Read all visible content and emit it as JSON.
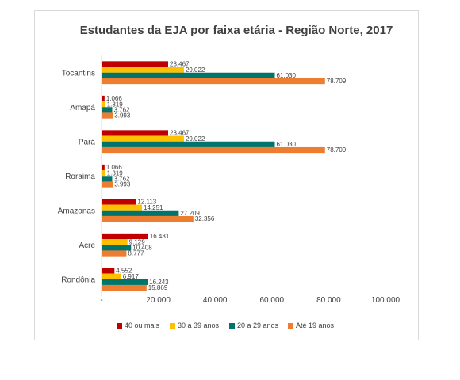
{
  "chart_data": {
    "type": "bar",
    "orientation": "horizontal",
    "title": "Estudantes da EJA por faixa etária - Região Norte, 2017",
    "xlabel": "",
    "ylabel": "",
    "categories": [
      "Tocantins",
      "Amapá",
      "Pará",
      "Roraima",
      "Amazonas",
      "Acre",
      "Rondônia"
    ],
    "series": [
      {
        "name": "40 ou mais",
        "color": "#c00000",
        "values": [
          23467,
          1066,
          23467,
          1066,
          12113,
          16431,
          4552
        ],
        "labels": [
          "23.467",
          "1.066",
          "23.467",
          "1.066",
          "12.113",
          "16.431",
          "4.552"
        ]
      },
      {
        "name": "30 a 39 anos",
        "color": "#ffc000",
        "values": [
          29022,
          1319,
          29022,
          1319,
          14251,
          9129,
          6917
        ],
        "labels": [
          "29.022",
          "1.319",
          "29.022",
          "1.319",
          "14.251",
          "9.129",
          "6.917"
        ]
      },
      {
        "name": "20 a 29 anos",
        "color": "#00746a",
        "values": [
          61030,
          3762,
          61030,
          3762,
          27209,
          10408,
          16243
        ],
        "labels": [
          "61.030",
          "3.762",
          "61.030",
          "3.762",
          "27.209",
          "10.408",
          "16.243"
        ]
      },
      {
        "name": "Até 19 anos",
        "color": "#ed7d31",
        "values": [
          78709,
          3993,
          78709,
          3993,
          32356,
          8777,
          15869
        ],
        "labels": [
          "78.709",
          "3.993",
          "78.709",
          "3.993",
          "32.356",
          "8.777",
          "15.869"
        ]
      }
    ],
    "xlim": [
      0,
      100000
    ],
    "xticks": [
      0,
      20000,
      40000,
      60000,
      80000,
      100000
    ],
    "xtick_labels": [
      "-",
      "20.000",
      "40.000",
      "60.000",
      "80.000",
      "100.000"
    ],
    "grid": false,
    "legend_position": "bottom"
  }
}
